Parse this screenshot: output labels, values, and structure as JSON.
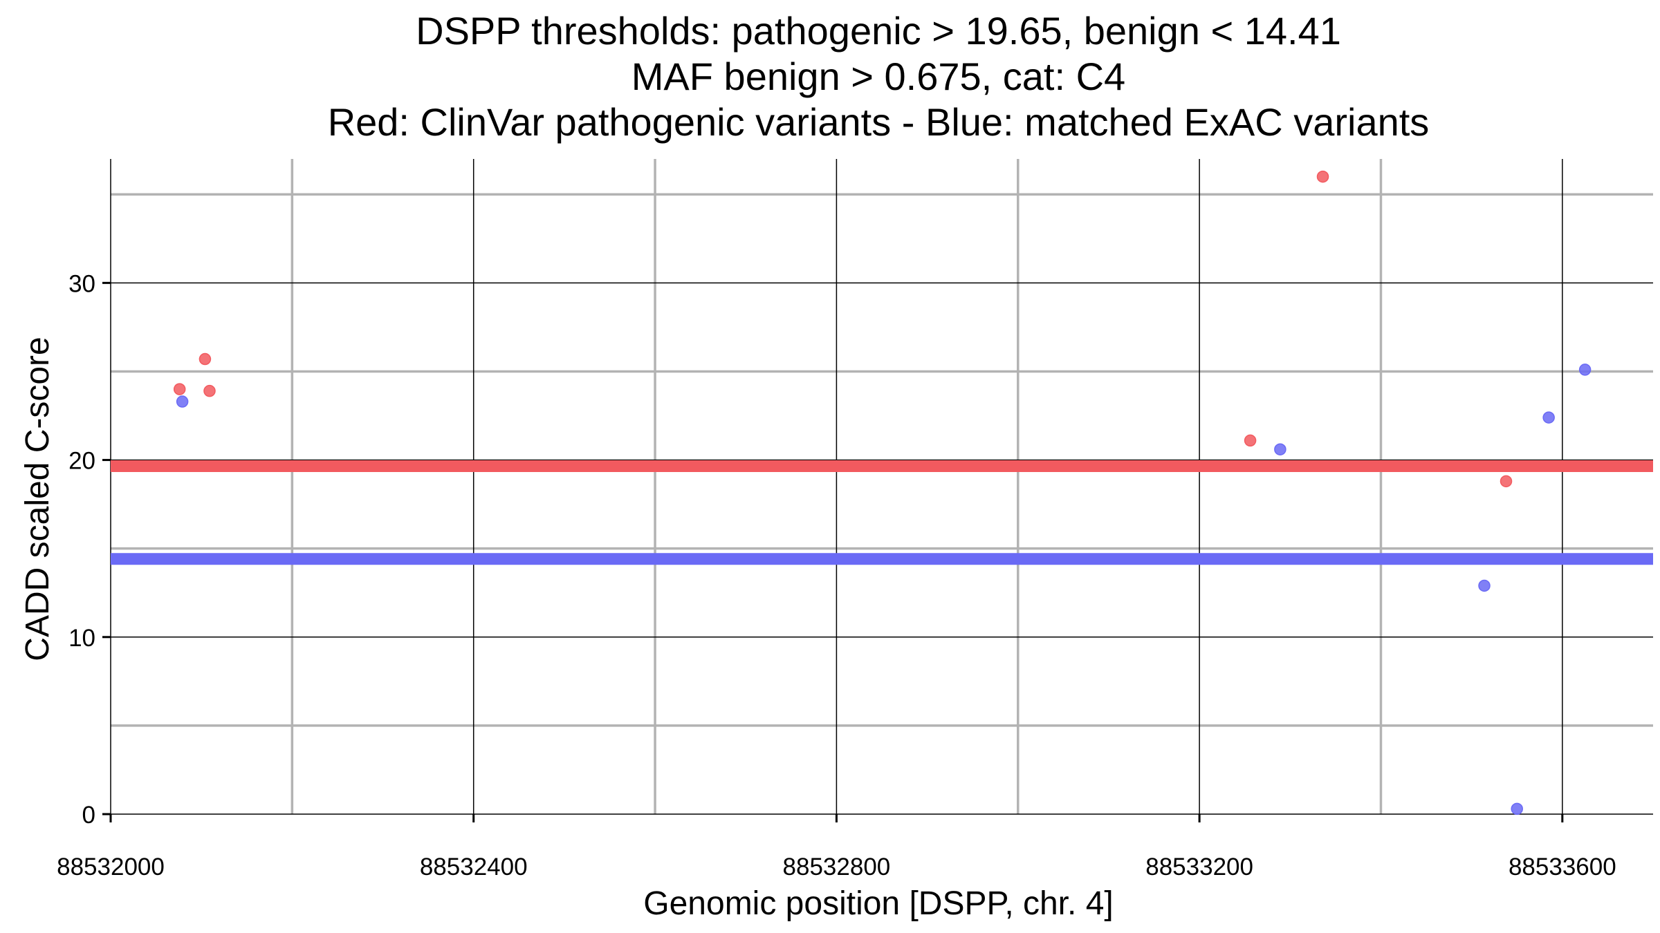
{
  "chart_data": {
    "type": "scatter",
    "title_lines": [
      "DSPP thresholds: pathogenic > 19.65, benign < 14.41",
      "MAF benign > 0.675, cat: C4",
      "Red: ClinVar pathogenic variants - Blue: matched ExAC variants"
    ],
    "xlabel": "Genomic position [DSPP, chr. 4]",
    "ylabel": "CADD scaled C-score",
    "xlim": [
      88532000,
      88533700
    ],
    "ylim": [
      0,
      37
    ],
    "x_ticks": [
      88532000,
      88532400,
      88532800,
      88533200,
      88533600
    ],
    "x_tick_labels": [
      "88532000",
      "88532400",
      "88532800",
      "88533200",
      "88533600"
    ],
    "x_minor_grid": [
      88532200,
      88532600,
      88533000,
      88533400
    ],
    "y_ticks": [
      0,
      10,
      20,
      30
    ],
    "y_tick_labels": [
      "0",
      "10",
      "20",
      "30"
    ],
    "y_minor_grid": [
      5,
      15,
      25,
      35
    ],
    "thresholds": [
      {
        "name": "pathogenic",
        "value": 19.65,
        "color": "#f25a5f"
      },
      {
        "name": "benign",
        "value": 14.41,
        "color": "#6a6af5"
      }
    ],
    "series": [
      {
        "name": "ClinVar pathogenic",
        "color": "#f25a5f",
        "points": [
          {
            "x": 88532076,
            "y": 24.0
          },
          {
            "x": 88532104,
            "y": 25.7
          },
          {
            "x": 88532109,
            "y": 23.9
          },
          {
            "x": 88533256,
            "y": 21.1
          },
          {
            "x": 88533336,
            "y": 36.0
          },
          {
            "x": 88533538,
            "y": 18.8
          }
        ]
      },
      {
        "name": "matched ExAC",
        "color": "#6a6af5",
        "points": [
          {
            "x": 88532079,
            "y": 23.3
          },
          {
            "x": 88533289,
            "y": 20.6
          },
          {
            "x": 88533514,
            "y": 12.9
          },
          {
            "x": 88533550,
            "y": 0.3
          },
          {
            "x": 88533585,
            "y": 22.4
          },
          {
            "x": 88533625,
            "y": 25.1
          }
        ]
      }
    ]
  }
}
